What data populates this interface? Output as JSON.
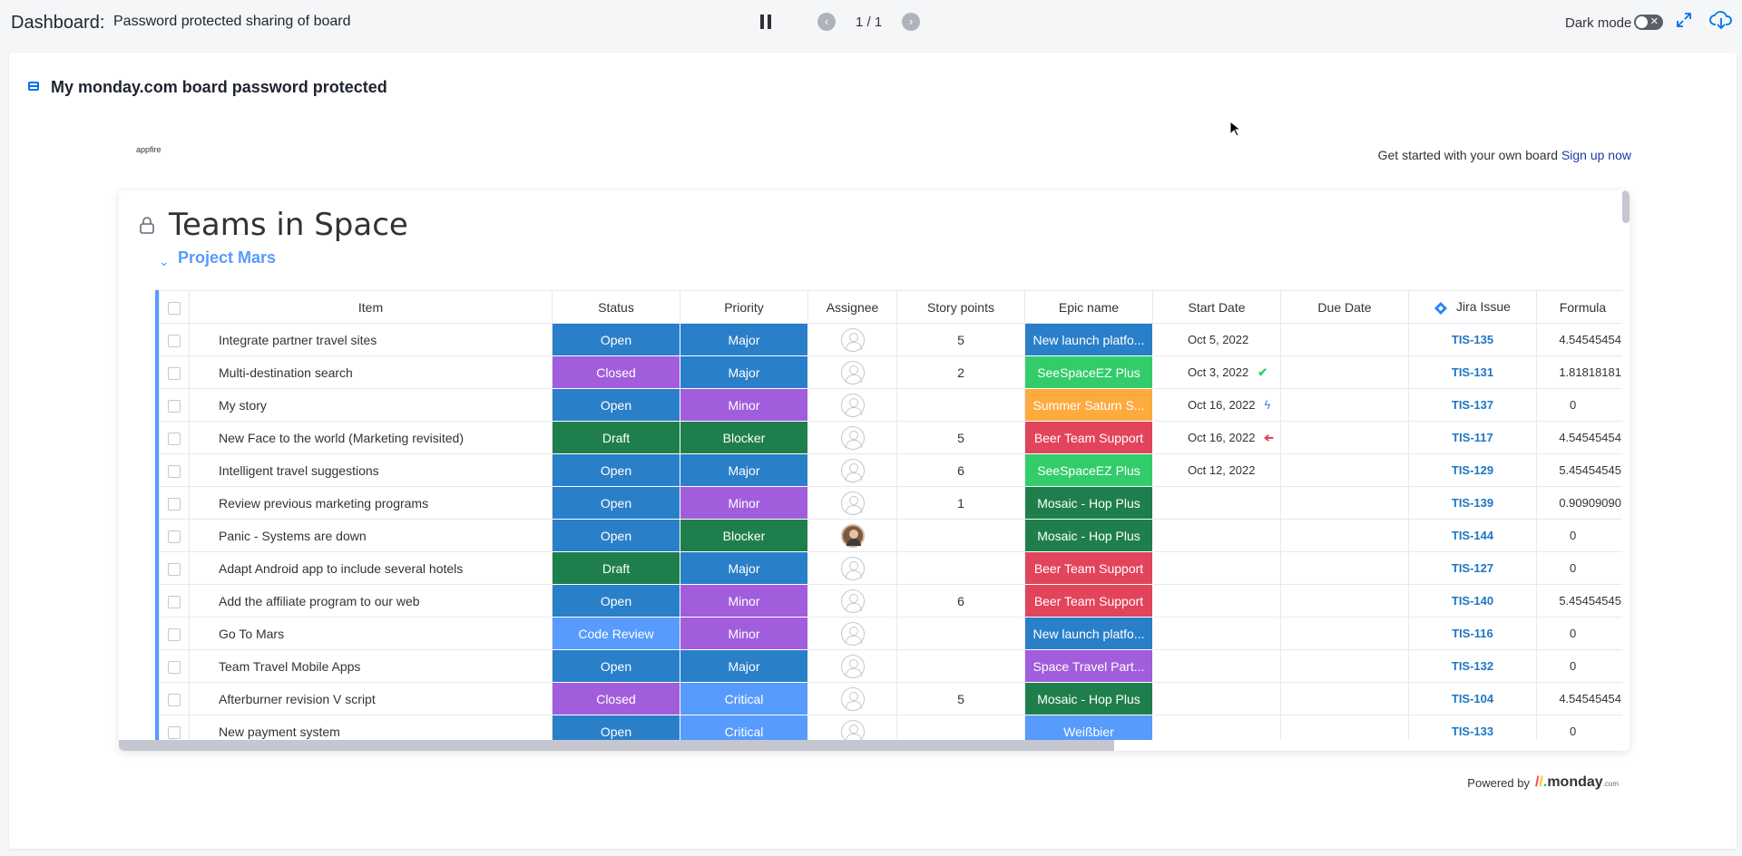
{
  "header": {
    "dashboard_label": "Dashboard:",
    "dashboard_name": "Password protected sharing of board",
    "page_indicator": "1 / 1",
    "dark_mode_label": "Dark mode"
  },
  "widget": {
    "title": "My monday.com board password protected",
    "brand": "appfire",
    "get_started": "Get started with your own board",
    "sign_up": "Sign up now",
    "powered_by": "Powered by",
    "monday_logo": "monday",
    "monday_logo_suffix": ".com"
  },
  "board": {
    "title": "Teams in Space",
    "group": "Project Mars",
    "columns": [
      "Item",
      "Status",
      "Priority",
      "Assignee",
      "Story points",
      "Epic name",
      "Start Date",
      "Due Date",
      "Jira Issue",
      "Formula"
    ],
    "rows": [
      {
        "item": "Integrate partner travel sites",
        "status": "Open",
        "priority": "Major",
        "assignee": "empty",
        "points": "5",
        "epic": "New launch platfo...",
        "start": "Oct 5, 2022",
        "start_icon": "",
        "due": "",
        "jira": "TIS-135",
        "formula": "4.54545454"
      },
      {
        "item": "Multi-destination search",
        "status": "Closed",
        "priority": "Major",
        "assignee": "empty",
        "points": "2",
        "epic": "SeeSpaceEZ Plus",
        "start": "Oct 3, 2022",
        "start_icon": "check",
        "due": "",
        "jira": "TIS-131",
        "formula": "1.81818181"
      },
      {
        "item": "My story",
        "status": "Open",
        "priority": "Minor",
        "assignee": "empty",
        "points": "",
        "epic": "Summer Saturn S...",
        "start": "Oct 16, 2022",
        "start_icon": "bolt",
        "due": "",
        "jira": "TIS-137",
        "formula": "0"
      },
      {
        "item": "New Face to the world (Marketing revisited)",
        "status": "Draft",
        "priority": "Blocker",
        "assignee": "empty",
        "points": "5",
        "epic": "Beer Team Support",
        "start": "Oct 16, 2022",
        "start_icon": "arrow",
        "due": "",
        "jira": "TIS-117",
        "formula": "4.54545454"
      },
      {
        "item": "Intelligent travel suggestions",
        "status": "Open",
        "priority": "Major",
        "assignee": "empty",
        "points": "6",
        "epic": "SeeSpaceEZ Plus",
        "start": "Oct 12, 2022",
        "start_icon": "",
        "due": "",
        "jira": "TIS-129",
        "formula": "5.45454545"
      },
      {
        "item": "Review previous marketing programs",
        "status": "Open",
        "priority": "Minor",
        "assignee": "empty",
        "points": "1",
        "epic": "Mosaic - Hop Plus",
        "start": "",
        "start_icon": "",
        "due": "",
        "jira": "TIS-139",
        "formula": "0.90909090"
      },
      {
        "item": "Panic - Systems are down",
        "status": "Open",
        "priority": "Blocker",
        "assignee": "photo",
        "points": "",
        "epic": "Mosaic - Hop Plus",
        "start": "",
        "start_icon": "",
        "due": "",
        "jira": "TIS-144",
        "formula": "0"
      },
      {
        "item": "Adapt Android app to include several hotels",
        "status": "Draft",
        "priority": "Major",
        "assignee": "empty",
        "points": "",
        "epic": "Beer Team Support",
        "start": "",
        "start_icon": "",
        "due": "",
        "jira": "TIS-127",
        "formula": "0"
      },
      {
        "item": "Add the affiliate program to our web",
        "status": "Open",
        "priority": "Minor",
        "assignee": "empty",
        "points": "6",
        "epic": "Beer Team Support",
        "start": "",
        "start_icon": "",
        "due": "",
        "jira": "TIS-140",
        "formula": "5.45454545"
      },
      {
        "item": "Go To Mars",
        "status": "Code Review",
        "priority": "Minor",
        "assignee": "empty",
        "points": "",
        "epic": "New launch platfo...",
        "start": "",
        "start_icon": "",
        "due": "",
        "jira": "TIS-116",
        "formula": "0"
      },
      {
        "item": "Team Travel Mobile Apps",
        "status": "Open",
        "priority": "Major",
        "assignee": "empty",
        "points": "",
        "epic": "Space Travel Part...",
        "start": "",
        "start_icon": "",
        "due": "",
        "jira": "TIS-132",
        "formula": "0"
      },
      {
        "item": "Afterburner revision V script",
        "status": "Closed",
        "priority": "Critical",
        "assignee": "empty",
        "points": "5",
        "epic": "Mosaic - Hop Plus",
        "start": "",
        "start_icon": "",
        "due": "",
        "jira": "TIS-104",
        "formula": "4.54545454"
      },
      {
        "item": "New payment system",
        "status": "Open",
        "priority": "Critical",
        "assignee": "empty",
        "points": "",
        "epic": "Weißbier",
        "start": "",
        "start_icon": "",
        "due": "",
        "jira": "TIS-133",
        "formula": "0"
      }
    ]
  },
  "colors": {
    "status": {
      "Open": "#2a7fc9",
      "Closed": "#a25ddc",
      "Draft": "#1f7f4c",
      "Code Review": "#579bfc"
    },
    "priority": {
      "Major": "#2a7fc9",
      "Minor": "#a25ddc",
      "Blocker": "#1f7f4c",
      "Critical": "#579bfc"
    },
    "epic": {
      "New launch platfo...": "#2a7fc9",
      "SeeSpaceEZ Plus": "#33cc6b",
      "Summer Saturn S...": "#fdab3d",
      "Beer Team Support": "#e2445c",
      "Mosaic - Hop Plus": "#1f7f4c",
      "Space Travel Part...": "#a25ddc",
      "Weißbier": "#579bfc"
    },
    "start_icons": {
      "check": "#33cc6b",
      "bolt": "#579bfc",
      "arrow": "#e2445c"
    }
  },
  "icons": {
    "pause": "pause-icon",
    "prev": "chevron-left-icon",
    "next": "chevron-right-icon",
    "expand": "expand-icon",
    "download": "cloud-download-icon",
    "lock": "lock-icon",
    "widget": "board-widget-icon",
    "jira": "jira-icon",
    "cursor": "mouse-cursor-icon"
  }
}
